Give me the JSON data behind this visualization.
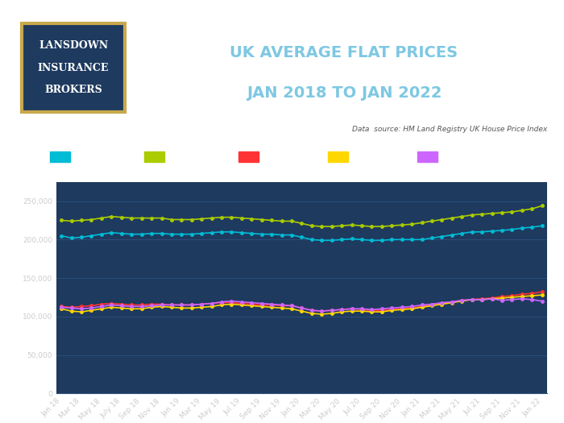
{
  "title_line1": "UK AVERAGE FLAT PRICES",
  "title_line2": "JAN 2018 TO JAN 2022",
  "data_source": "Data  source: HM Land Registry UK House Price Index",
  "bg_color": "#1e3a5f",
  "title_color": "#7ec8e3",
  "tick_label_color": "#cccccc",
  "grid_color": "#2e5480",
  "logo_bg": "#1e3a5f",
  "logo_border": "#c8a84b",
  "logo_text_color": "#ffffff",
  "series": {
    "UK": {
      "color": "#00bcd4",
      "values": [
        205000,
        202000,
        203000,
        205000,
        207000,
        209000,
        208000,
        207000,
        207000,
        208000,
        208000,
        207000,
        207000,
        207000,
        208000,
        209000,
        210000,
        210000,
        209000,
        208000,
        207000,
        207000,
        206000,
        206000,
        203000,
        200000,
        199000,
        199000,
        200000,
        201000,
        200000,
        199000,
        199000,
        200000,
        200000,
        200000,
        200000,
        202000,
        204000,
        206000,
        208000,
        210000,
        210000,
        211000,
        212000,
        213000,
        215000,
        216000,
        218000
      ]
    },
    "ENGLAND": {
      "color": "#aacc00",
      "values": [
        225000,
        224000,
        225000,
        226000,
        228000,
        230000,
        229000,
        228000,
        228000,
        228000,
        228000,
        226000,
        226000,
        226000,
        227000,
        228000,
        229000,
        229000,
        228000,
        227000,
        226000,
        225000,
        224000,
        224000,
        221000,
        218000,
        217000,
        217000,
        218000,
        219000,
        218000,
        217000,
        217000,
        218000,
        219000,
        220000,
        222000,
        224000,
        226000,
        228000,
        230000,
        232000,
        233000,
        234000,
        235000,
        236000,
        238000,
        240000,
        244000
      ]
    },
    "WALES": {
      "color": "#ff3333",
      "values": [
        113000,
        112000,
        113000,
        114000,
        116000,
        117000,
        116000,
        115000,
        115000,
        116000,
        116000,
        115000,
        115000,
        115000,
        116000,
        117000,
        118000,
        118000,
        117000,
        116000,
        115000,
        115000,
        114000,
        114000,
        111000,
        108000,
        107000,
        108000,
        109000,
        110000,
        109000,
        108000,
        108000,
        109000,
        110000,
        111000,
        113000,
        115000,
        117000,
        119000,
        121000,
        122000,
        123000,
        124000,
        126000,
        127000,
        129000,
        130000,
        132000
      ]
    },
    "SCOTLAND": {
      "color": "#ffd700",
      "values": [
        110000,
        107000,
        106000,
        108000,
        110000,
        112000,
        111000,
        110000,
        110000,
        112000,
        113000,
        112000,
        111000,
        111000,
        112000,
        113000,
        115000,
        116000,
        115000,
        114000,
        113000,
        112000,
        111000,
        110000,
        107000,
        104000,
        103000,
        104000,
        106000,
        107000,
        107000,
        106000,
        106000,
        108000,
        109000,
        110000,
        112000,
        114000,
        116000,
        118000,
        120000,
        122000,
        122000,
        123000,
        124000,
        125000,
        126000,
        127000,
        128000
      ]
    },
    "N.IRELAND": {
      "color": "#cc66ff",
      "values": [
        112000,
        111000,
        110000,
        111000,
        113000,
        115000,
        114000,
        113000,
        113000,
        114000,
        115000,
        115000,
        115000,
        115000,
        116000,
        117000,
        119000,
        120000,
        119000,
        118000,
        117000,
        116000,
        115000,
        114000,
        111000,
        108000,
        107000,
        108000,
        109000,
        110000,
        110000,
        109000,
        110000,
        111000,
        112000,
        113000,
        115000,
        116000,
        118000,
        119000,
        121000,
        122000,
        122000,
        123000,
        121000,
        122000,
        123000,
        122000,
        120000
      ]
    }
  },
  "x_labels": [
    "Jan 18",
    "Mar 18",
    "May 18",
    "July 18",
    "Sep 18",
    "Nov 18",
    "Jan 19",
    "Mar 19",
    "May 19",
    "Jul 19",
    "Sep 19",
    "Nov 19",
    "Jan 20",
    "Mar 20",
    "May 20",
    "Jul 20",
    "Sep 20",
    "Nov 20",
    "Jan 21",
    "Mar 21",
    "May 21",
    "Jul 21",
    "Sep 21",
    "Nov 21",
    "Jan 22"
  ],
  "x_label_indices": [
    0,
    2,
    4,
    6,
    8,
    10,
    12,
    14,
    16,
    18,
    20,
    22,
    24,
    26,
    28,
    30,
    32,
    34,
    36,
    38,
    40,
    42,
    44,
    46,
    48
  ],
  "ylim": [
    0,
    275000
  ],
  "yticks": [
    0,
    50000,
    100000,
    150000,
    200000,
    250000
  ],
  "figsize": [
    7.0,
    5.25
  ],
  "dpi": 100
}
